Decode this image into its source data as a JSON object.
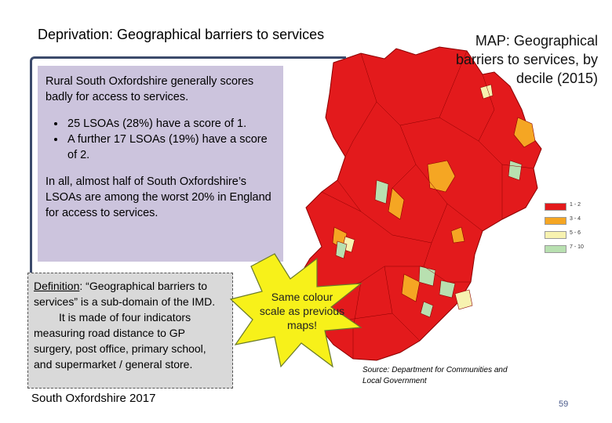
{
  "slide": {
    "title": "Deprivation: Geographical barriers to services",
    "map_title": "MAP: Geographical barriers to services, by decile (2015)",
    "info": {
      "intro": "Rural South Oxfordshire generally scores badly  for access to services.",
      "bullets": [
        "25 LSOAs (28%) have a score of 1.",
        "A further 17 LSOAs (19%) have a score of 2."
      ],
      "summary": "In all, almost half of South Oxfordshire’s LSOAs are among the worst 20% in England for access to services."
    },
    "definition": {
      "label": "Definition",
      "text1": ": “Geographical barriers to services” is a sub-domain of the IMD.",
      "text2": "It is made of four indicators measuring road distance to GP surgery, post office, primary school, and supermarket / general store."
    },
    "callout": "Same colour scale as previous maps!",
    "source": "Source: Department for Communities and Local Government",
    "footer": "South Oxfordshire  2017",
    "page_number": "59"
  },
  "legend": [
    {
      "label": "1 - 2",
      "color": "#e31a1c"
    },
    {
      "label": "3 - 4",
      "color": "#f5a623"
    },
    {
      "label": "5 - 6",
      "color": "#f7f2b0"
    },
    {
      "label": "7 - 10",
      "color": "#b8e0b0"
    }
  ],
  "colors": {
    "map_red": "#e31a1c",
    "orange": "#f5a623",
    "pale_yellow": "#f7f2b0",
    "light_green": "#b8e0b0",
    "info_box": "#ccc4dd",
    "definition_box": "#d9d9d9",
    "star": "#f7f11a"
  }
}
